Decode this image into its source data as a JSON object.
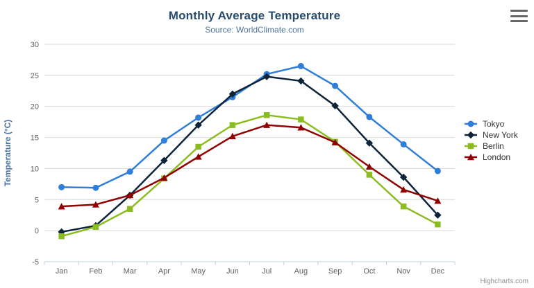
{
  "chart": {
    "title": "Monthly Average Temperature",
    "subtitle": "Source: WorldClimate.com",
    "credit": "Highcharts.com",
    "context_menu_icon": "hamburger-menu-icon"
  },
  "chart_data": {
    "type": "line",
    "title": "Monthly Average Temperature",
    "subtitle": "Source: WorldClimate.com",
    "categories": [
      "Jan",
      "Feb",
      "Mar",
      "Apr",
      "May",
      "Jun",
      "Jul",
      "Aug",
      "Sep",
      "Oct",
      "Nov",
      "Dec"
    ],
    "xlabel": "",
    "ylabel": "Temperature (°C)",
    "ylim": [
      -5,
      30
    ],
    "ytick_interval": 5,
    "grid": true,
    "legend_position": "right",
    "colors": {
      "grid": "#d8d8d8",
      "axis_line": "#c0d0e0",
      "tick_label": "#606060",
      "axis_title": "#4572a7"
    },
    "series": [
      {
        "name": "Tokyo",
        "color": "#2f7ed8",
        "marker": "circle",
        "values": [
          7.0,
          6.9,
          9.5,
          14.5,
          18.2,
          21.5,
          25.2,
          26.5,
          23.3,
          18.3,
          13.9,
          9.6
        ]
      },
      {
        "name": "New York",
        "color": "#0d233a",
        "marker": "diamond",
        "values": [
          -0.2,
          0.8,
          5.7,
          11.3,
          17.0,
          22.0,
          24.8,
          24.1,
          20.1,
          14.1,
          8.6,
          2.5
        ]
      },
      {
        "name": "Berlin",
        "color": "#8bbc21",
        "marker": "square",
        "values": [
          -0.9,
          0.6,
          3.5,
          8.4,
          13.5,
          17.0,
          18.6,
          17.9,
          14.3,
          9.0,
          3.9,
          1.0
        ]
      },
      {
        "name": "London",
        "color": "#910000",
        "marker": "triangle",
        "values": [
          3.9,
          4.2,
          5.7,
          8.5,
          11.9,
          15.2,
          17.0,
          16.6,
          14.2,
          10.3,
          6.6,
          4.8
        ]
      }
    ]
  }
}
